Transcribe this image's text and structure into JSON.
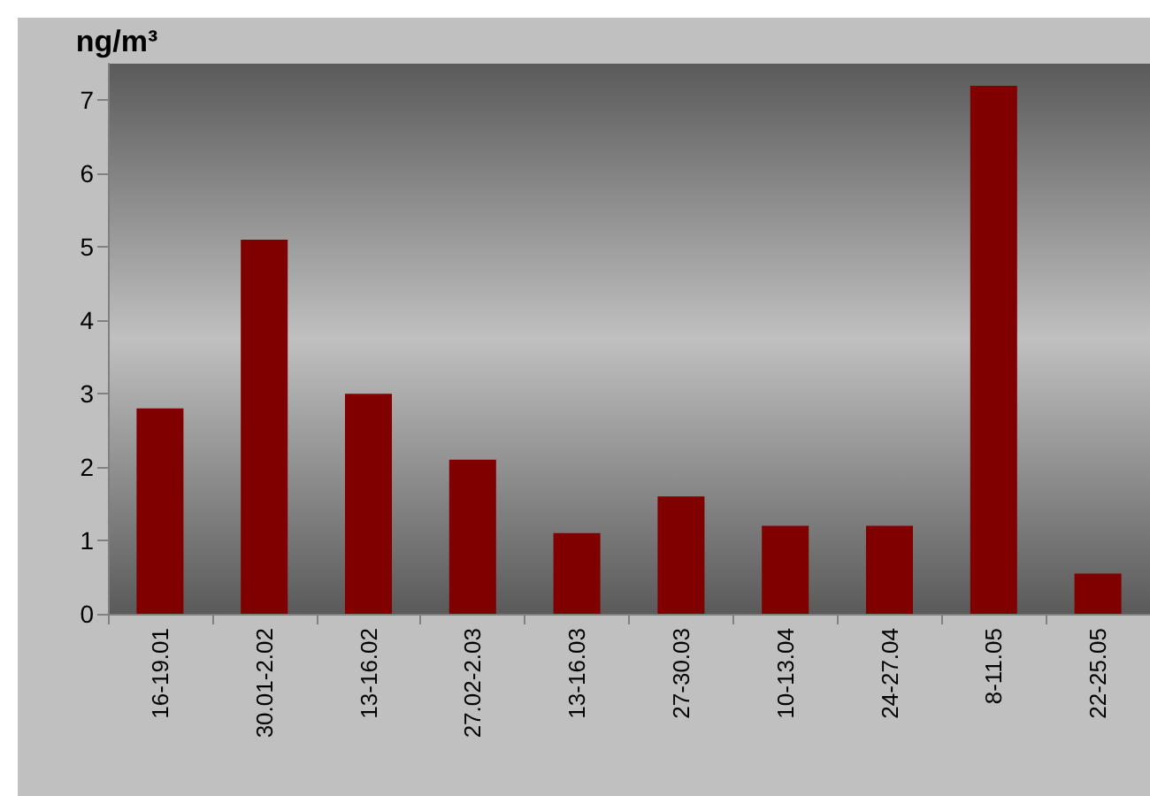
{
  "chart_data": {
    "type": "bar",
    "ylabel": "ng/m³",
    "categories": [
      "16-19.01",
      "30.01-2.02",
      "13-16.02",
      "27.02-2.03",
      "13-16.03",
      "27-30.03",
      "10-13.04",
      "24-27.04",
      "8-11.05",
      "22-25.05"
    ],
    "values": [
      2.8,
      5.1,
      3.0,
      2.1,
      1.1,
      1.6,
      1.2,
      1.2,
      7.2,
      0.55
    ],
    "color": "#800000",
    "ylim": [
      0,
      7.5
    ],
    "yticks": [
      0,
      1,
      2,
      3,
      4,
      5,
      6,
      7
    ],
    "grid": false
  }
}
